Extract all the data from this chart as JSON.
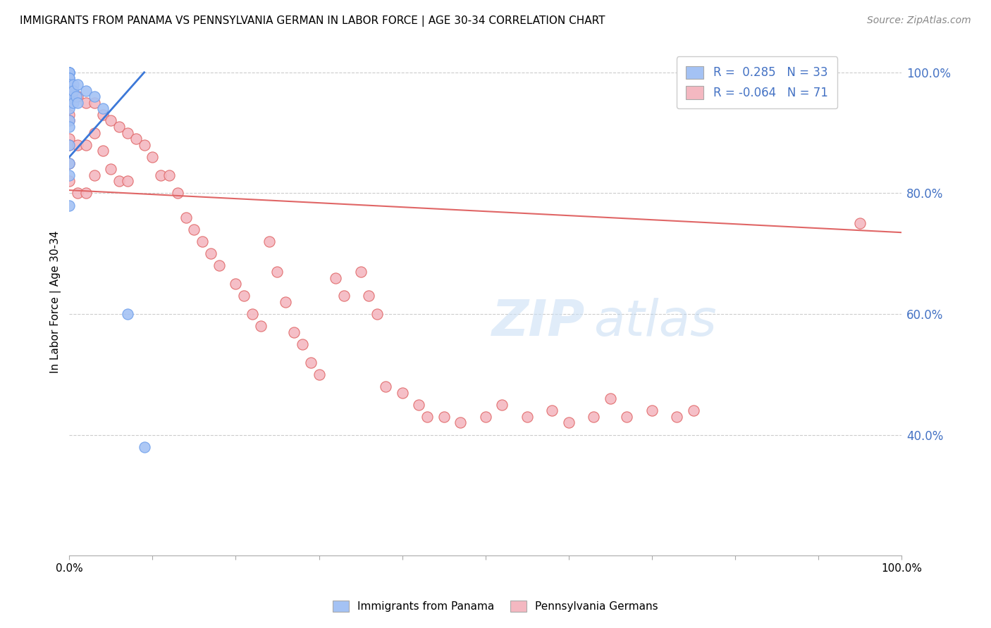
{
  "title": "IMMIGRANTS FROM PANAMA VS PENNSYLVANIA GERMAN IN LABOR FORCE | AGE 30-34 CORRELATION CHART",
  "source": "Source: ZipAtlas.com",
  "ylabel": "In Labor Force | Age 30-34",
  "xlim": [
    0,
    1.0
  ],
  "ylim": [
    0.2,
    1.04
  ],
  "blue_color": "#a4c2f4",
  "pink_color": "#f4b8c1",
  "blue_edge_color": "#6d9eeb",
  "pink_edge_color": "#e06666",
  "blue_line_color": "#3c78d8",
  "pink_line_color": "#e06666",
  "legend_text_color": "#4472c4",
  "right_yticks": [
    0.4,
    0.6,
    0.8,
    1.0
  ],
  "right_yticklabels": [
    "40.0%",
    "60.0%",
    "80.0%",
    "100.0%"
  ],
  "panama_x": [
    0.0,
    0.0,
    0.0,
    0.0,
    0.0,
    0.0,
    0.0,
    0.0,
    0.0,
    0.0,
    0.0,
    0.0,
    0.0,
    0.0,
    0.0,
    0.0,
    0.0,
    0.0,
    0.0,
    0.0,
    0.003,
    0.003,
    0.005,
    0.005,
    0.005,
    0.008,
    0.01,
    0.01,
    0.02,
    0.03,
    0.04,
    0.07,
    0.09
  ],
  "panama_y": [
    1.0,
    1.0,
    1.0,
    1.0,
    1.0,
    0.99,
    0.99,
    0.98,
    0.97,
    0.96,
    0.96,
    0.95,
    0.95,
    0.94,
    0.92,
    0.91,
    0.88,
    0.85,
    0.83,
    0.78,
    0.97,
    0.96,
    0.98,
    0.97,
    0.95,
    0.96,
    0.98,
    0.95,
    0.97,
    0.96,
    0.94,
    0.6,
    0.38
  ],
  "pagerman_x": [
    0.0,
    0.0,
    0.0,
    0.0,
    0.0,
    0.0,
    0.0,
    0.0,
    0.0,
    0.01,
    0.01,
    0.01,
    0.02,
    0.02,
    0.02,
    0.03,
    0.03,
    0.03,
    0.04,
    0.04,
    0.05,
    0.05,
    0.06,
    0.06,
    0.07,
    0.07,
    0.08,
    0.09,
    0.1,
    0.11,
    0.12,
    0.13,
    0.14,
    0.15,
    0.16,
    0.17,
    0.18,
    0.2,
    0.21,
    0.22,
    0.23,
    0.24,
    0.25,
    0.26,
    0.27,
    0.28,
    0.29,
    0.3,
    0.32,
    0.33,
    0.35,
    0.36,
    0.37,
    0.38,
    0.4,
    0.42,
    0.43,
    0.45,
    0.47,
    0.5,
    0.52,
    0.55,
    0.58,
    0.6,
    0.63,
    0.65,
    0.67,
    0.7,
    0.73,
    0.75,
    0.95
  ],
  "pagerman_y": [
    0.97,
    0.96,
    0.95,
    0.93,
    0.92,
    0.89,
    0.88,
    0.85,
    0.82,
    0.96,
    0.88,
    0.8,
    0.95,
    0.88,
    0.8,
    0.95,
    0.9,
    0.83,
    0.93,
    0.87,
    0.92,
    0.84,
    0.91,
    0.82,
    0.9,
    0.82,
    0.89,
    0.88,
    0.86,
    0.83,
    0.83,
    0.8,
    0.76,
    0.74,
    0.72,
    0.7,
    0.68,
    0.65,
    0.63,
    0.6,
    0.58,
    0.72,
    0.67,
    0.62,
    0.57,
    0.55,
    0.52,
    0.5,
    0.66,
    0.63,
    0.67,
    0.63,
    0.6,
    0.48,
    0.47,
    0.45,
    0.43,
    0.43,
    0.42,
    0.43,
    0.45,
    0.43,
    0.44,
    0.42,
    0.43,
    0.46,
    0.43,
    0.44,
    0.43,
    0.44,
    0.75
  ],
  "pink_line_x_start": 0.0,
  "pink_line_x_end": 1.0,
  "pink_line_y_start": 0.805,
  "pink_line_y_end": 0.735,
  "blue_line_x_start": 0.0,
  "blue_line_x_end": 0.09,
  "blue_line_y_start": 0.86,
  "blue_line_y_end": 1.0
}
